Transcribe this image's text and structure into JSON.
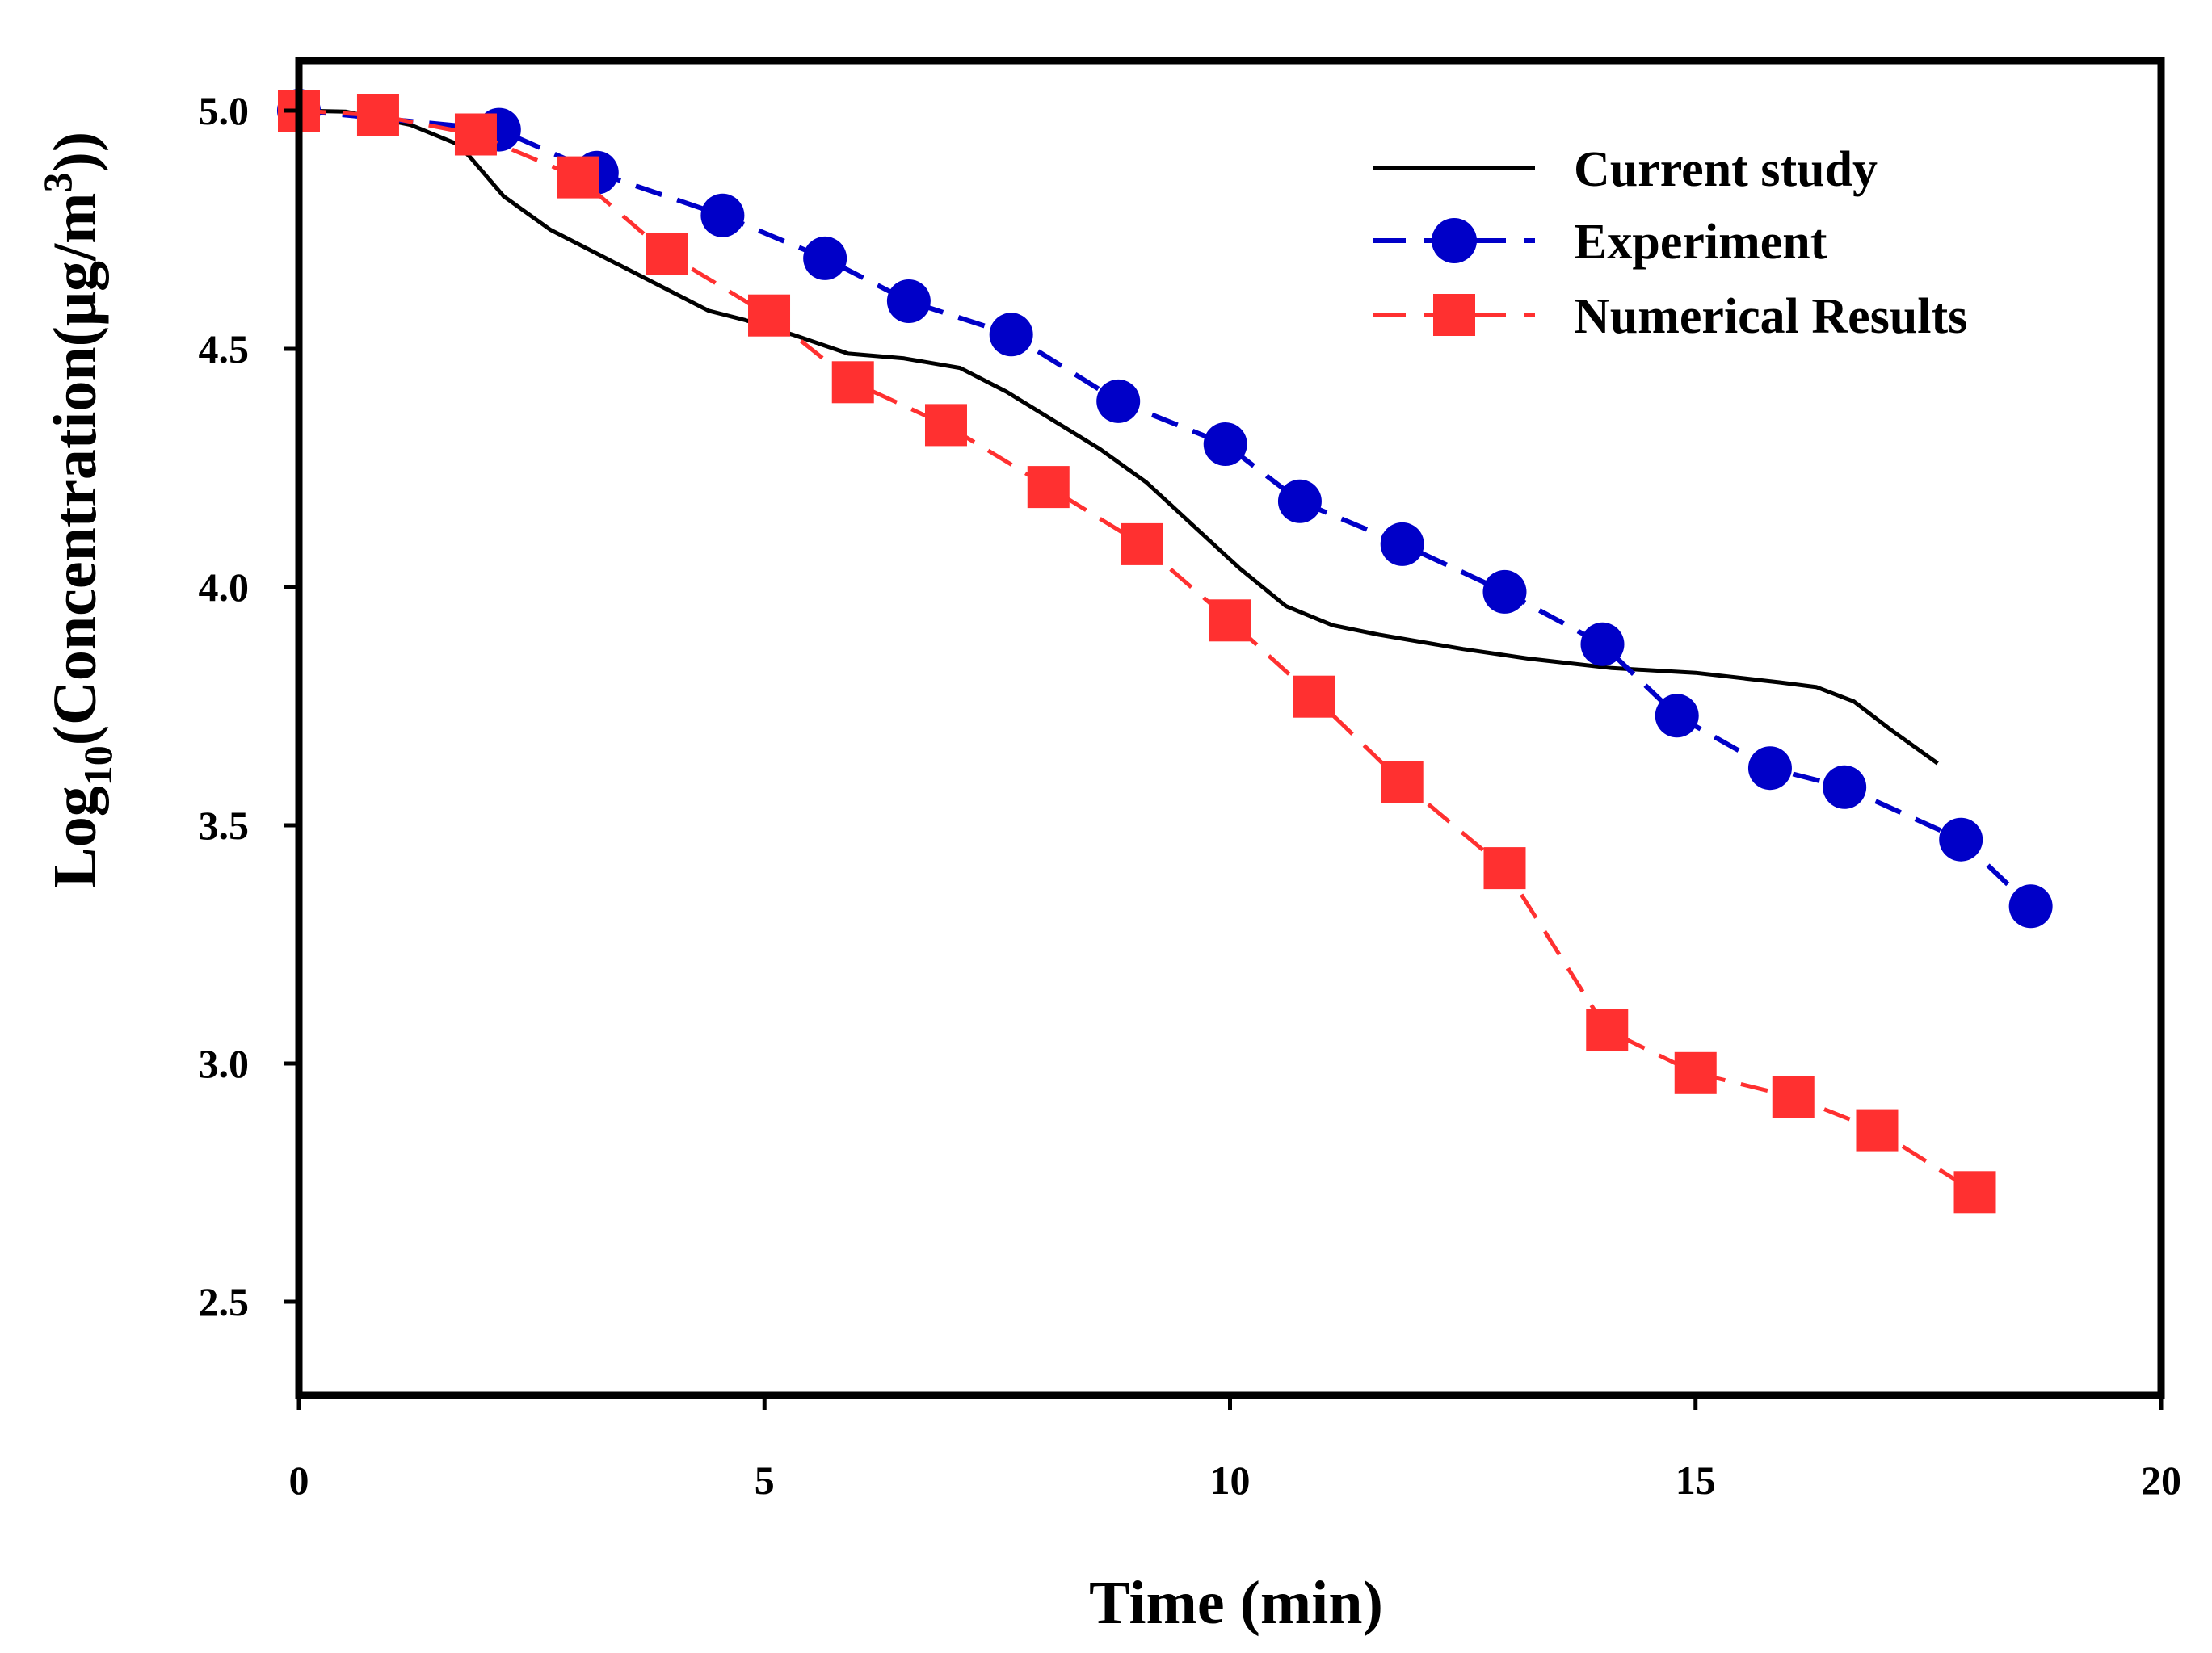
{
  "chart_data": {
    "type": "line",
    "title": "",
    "xlabel": "Time (min)",
    "ylabel_prefix": "Log",
    "ylabel_subscript": "10",
    "ylabel_main": "(Concentration(μg/m",
    "ylabel_superscript": "3",
    "ylabel_suffix": "))",
    "xlim": [
      0,
      20
    ],
    "ylim": [
      2.3,
      5.1
    ],
    "xticks": [
      0,
      5,
      10,
      15,
      20
    ],
    "xtick_labels": [
      "0",
      "5",
      "10",
      "15",
      "20"
    ],
    "yticks": [
      2.5,
      3.0,
      3.5,
      4.0,
      4.5,
      5.0
    ],
    "ytick_labels": [
      "2.5",
      "3.0",
      "3.5",
      "4.0",
      "4.5",
      "5.0"
    ],
    "grid": false,
    "legend_position": "top-right",
    "series": [
      {
        "name": "Current study",
        "color": "#000000",
        "style": "solid",
        "marker": "none",
        "x": [
          0,
          0.5,
          1.2,
          1.7,
          1.85,
          2.2,
          2.7,
          3.2,
          3.8,
          4.4,
          4.8,
          5.3,
          5.9,
          6.5,
          7.1,
          7.6,
          8.1,
          8.6,
          9.1,
          9.6,
          10.1,
          10.6,
          11.1,
          11.6,
          12.5,
          13.2,
          14.1,
          15.0,
          15.9,
          16.3,
          16.7,
          17.1,
          17.6
        ],
        "y": [
          5.0,
          4.998,
          4.97,
          4.93,
          4.9,
          4.82,
          4.75,
          4.7,
          4.64,
          4.58,
          4.56,
          4.53,
          4.49,
          4.48,
          4.46,
          4.41,
          4.35,
          4.29,
          4.22,
          4.13,
          4.04,
          3.96,
          3.92,
          3.9,
          3.87,
          3.85,
          3.83,
          3.82,
          3.8,
          3.79,
          3.76,
          3.7,
          3.63
        ]
      },
      {
        "name": "Experiment",
        "color": "#0000c8",
        "style": "dashed",
        "marker": "circle",
        "x": [
          0,
          2.15,
          3.2,
          4.55,
          5.65,
          6.55,
          7.65,
          8.8,
          9.95,
          10.75,
          11.85,
          12.95,
          14.0,
          14.8,
          15.8,
          16.6,
          17.85,
          18.6
        ],
        "y": [
          5.0,
          4.96,
          4.87,
          4.78,
          4.69,
          4.6,
          4.53,
          4.39,
          4.3,
          4.18,
          4.09,
          3.99,
          3.88,
          3.73,
          3.62,
          3.58,
          3.47,
          3.33
        ]
      },
      {
        "name": "Numerical Results",
        "color": "#ff3030",
        "style": "dashed",
        "marker": "square",
        "x": [
          0,
          0.85,
          1.9,
          3.0,
          3.95,
          5.05,
          5.95,
          6.95,
          8.05,
          9.05,
          10.0,
          10.9,
          11.85,
          12.95,
          14.05,
          15.0,
          16.05,
          16.95,
          18.0
        ],
        "y": [
          5.0,
          4.99,
          4.95,
          4.86,
          4.7,
          4.57,
          4.43,
          4.34,
          4.21,
          4.09,
          3.93,
          3.77,
          3.59,
          3.41,
          3.07,
          2.98,
          2.93,
          2.86,
          2.73
        ]
      }
    ]
  }
}
